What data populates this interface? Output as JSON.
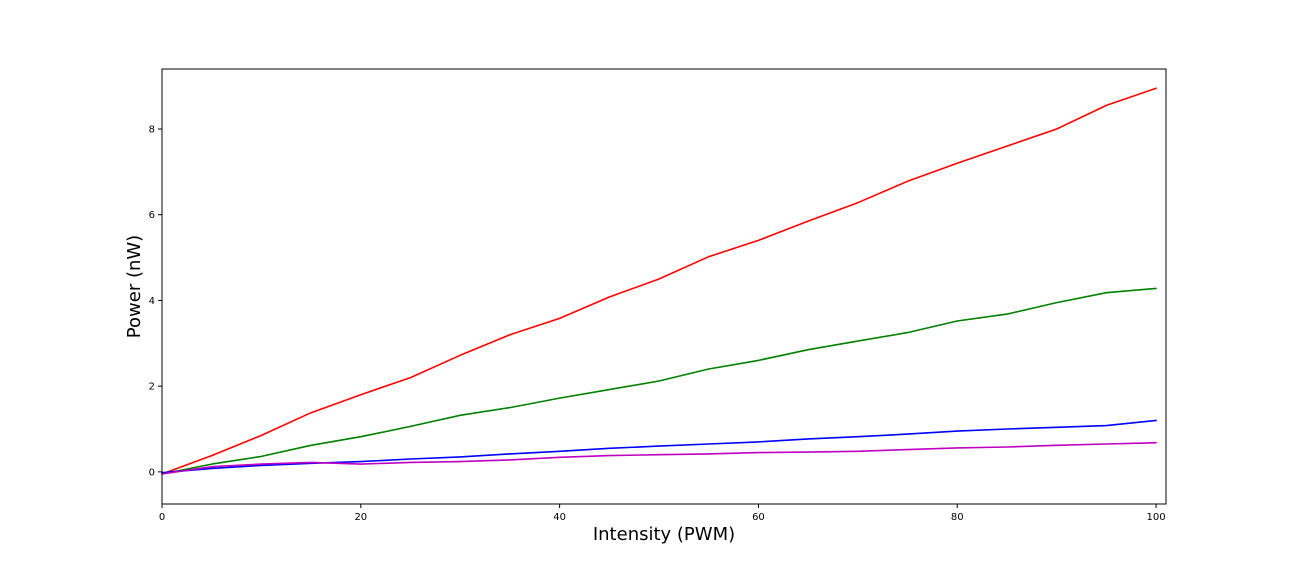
{
  "chart_data": {
    "type": "line",
    "title": "",
    "xlabel": "Intensity (PWM)",
    "ylabel": "Power (nW)",
    "xlim": [
      0,
      101
    ],
    "ylim": [
      -0.75,
      9.4
    ],
    "xticks": [
      "0",
      "20",
      "40",
      "60",
      "80",
      "100"
    ],
    "yticks": [
      "0",
      "2",
      "4",
      "6",
      "8"
    ],
    "grid": false,
    "legend": "none",
    "x": [
      0,
      5,
      10,
      15,
      20,
      25,
      30,
      35,
      40,
      45,
      50,
      55,
      60,
      65,
      70,
      75,
      80,
      85,
      90,
      95,
      100
    ],
    "series": [
      {
        "color": "#ff0000",
        "values": [
          -0.05,
          0.38,
          0.85,
          1.38,
          1.8,
          2.2,
          2.72,
          3.2,
          3.58,
          4.08,
          4.5,
          5.02,
          5.4,
          5.85,
          6.28,
          6.78,
          7.2,
          7.6,
          8.0,
          8.55,
          8.95
        ]
      },
      {
        "color": "#008000",
        "values": [
          -0.05,
          0.18,
          0.36,
          0.62,
          0.82,
          1.06,
          1.32,
          1.5,
          1.72,
          1.92,
          2.12,
          2.4,
          2.6,
          2.85,
          3.05,
          3.25,
          3.52,
          3.68,
          3.95,
          4.18,
          4.28
        ]
      },
      {
        "color": "#0000ff",
        "values": [
          -0.02,
          0.08,
          0.15,
          0.2,
          0.24,
          0.3,
          0.35,
          0.42,
          0.48,
          0.55,
          0.6,
          0.65,
          0.7,
          0.77,
          0.82,
          0.88,
          0.95,
          1.0,
          1.04,
          1.08,
          1.2
        ]
      },
      {
        "color": "#c000c0",
        "values": [
          -0.05,
          0.12,
          0.18,
          0.22,
          0.18,
          0.22,
          0.24,
          0.28,
          0.34,
          0.38,
          0.4,
          0.42,
          0.45,
          0.46,
          0.48,
          0.52,
          0.56,
          0.58,
          0.62,
          0.65,
          0.68
        ]
      }
    ]
  }
}
